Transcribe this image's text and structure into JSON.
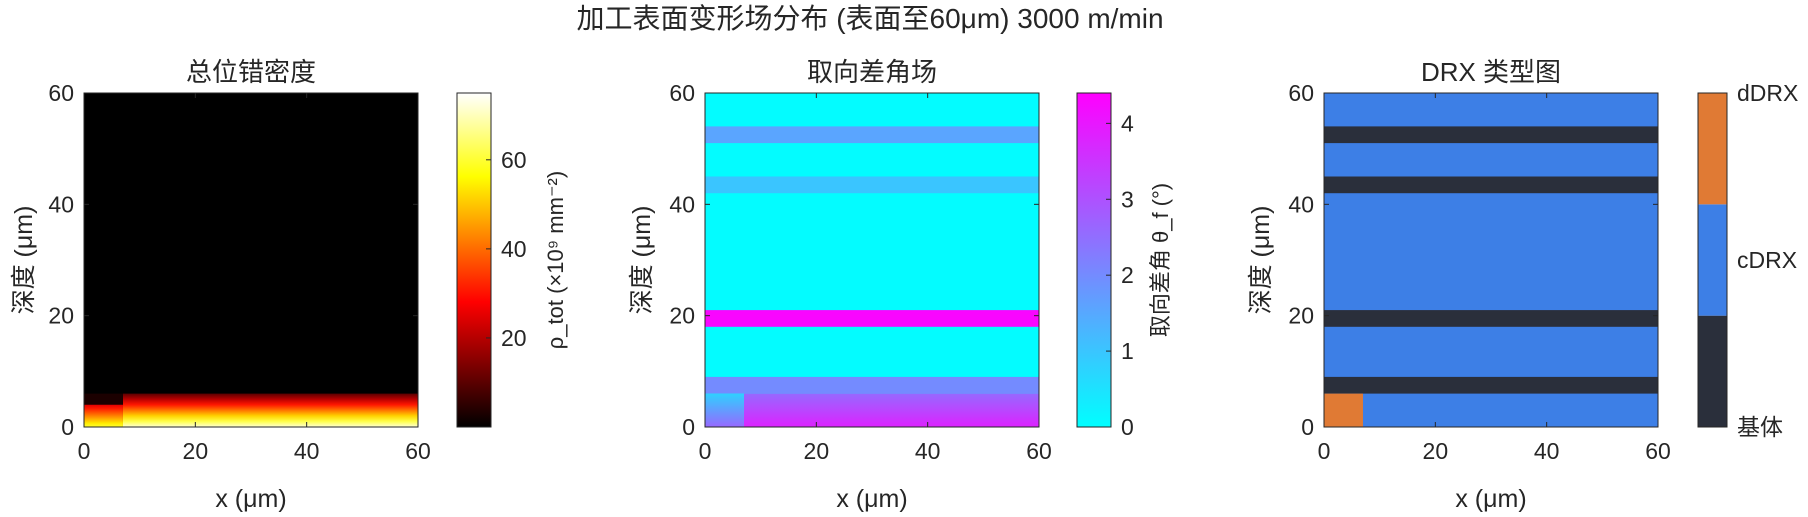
{
  "figure": {
    "title": "加工表面变形场分布 (表面至60μm)   3000 m/min"
  },
  "colors": {
    "axis": "#262626",
    "cyan": "#00ffff",
    "magenta": "#ff00ff",
    "drx_base": "#2a2f3b",
    "drx_c": "#3d7fe6",
    "drx_d": "#e07a34"
  },
  "chart_data": [
    {
      "type": "heatmap",
      "title": "总位错密度",
      "xlabel": "x (μm)",
      "ylabel": "深度 (μm)",
      "xlim": [
        0,
        60
      ],
      "ylim": [
        0,
        60
      ],
      "xticks": [
        0,
        20,
        40,
        60
      ],
      "yticks": [
        0,
        20,
        40,
        60
      ],
      "colormap": "hot",
      "colorbar": {
        "label": "ρ_tot (×10⁹ mm⁻²)",
        "range": [
          0,
          75
        ],
        "ticks": [
          20,
          40,
          60
        ]
      },
      "regions": [
        {
          "x": [
            0,
            60
          ],
          "y": [
            6,
            60
          ],
          "value": 0
        },
        {
          "x": [
            7,
            60
          ],
          "y": [
            0,
            6
          ],
          "value_top": 10,
          "value_bottom": 72
        },
        {
          "x": [
            0,
            7
          ],
          "y": [
            4,
            6
          ],
          "value": 3
        },
        {
          "x": [
            0,
            7
          ],
          "y": [
            0,
            4
          ],
          "value_top": 25,
          "value_bottom": 60
        }
      ]
    },
    {
      "type": "heatmap",
      "title": "取向差角场",
      "xlabel": "x (μm)",
      "ylabel": "深度 (μm)",
      "xlim": [
        0,
        60
      ],
      "ylim": [
        0,
        60
      ],
      "xticks": [
        0,
        20,
        40,
        60
      ],
      "yticks": [
        0,
        20,
        40,
        60
      ],
      "colormap": "cool",
      "colorbar": {
        "label": "取向差角 θ_f (°)",
        "range": [
          0,
          4.4
        ],
        "ticks": [
          0,
          1,
          2,
          3,
          4
        ]
      },
      "bands": [
        {
          "y": [
            51,
            54
          ],
          "value": 1.55
        },
        {
          "y": [
            42,
            45
          ],
          "value": 1.0
        },
        {
          "y": [
            18,
            21
          ],
          "value": 4.3
        },
        {
          "y": [
            6,
            9
          ],
          "value": 2.0
        }
      ],
      "background_value": 0.05,
      "regions": [
        {
          "x": [
            7,
            60
          ],
          "y": [
            0,
            6
          ],
          "value_top": 2.6,
          "value_bottom": 3.8
        },
        {
          "x": [
            0,
            7
          ],
          "y": [
            0,
            6
          ],
          "value_top": 0.8,
          "value_bottom": 2.6
        }
      ]
    },
    {
      "type": "heatmap",
      "title": "DRX 类型图",
      "xlabel": "x (μm)",
      "ylabel": "深度 (μm)",
      "xlim": [
        0,
        60
      ],
      "ylim": [
        0,
        60
      ],
      "xticks": [
        0,
        20,
        40,
        60
      ],
      "yticks": [
        0,
        20,
        40,
        60
      ],
      "colorbar": {
        "categories": [
          "基体",
          "cDRX",
          "dDRX"
        ]
      },
      "background_category": "cDRX",
      "bands": [
        {
          "y": [
            51,
            54
          ],
          "category": "基体"
        },
        {
          "y": [
            42,
            45
          ],
          "category": "基体"
        },
        {
          "y": [
            18,
            21
          ],
          "category": "基体"
        },
        {
          "y": [
            6,
            9
          ],
          "category": "基体"
        }
      ],
      "regions": [
        {
          "x": [
            0,
            7
          ],
          "y": [
            0,
            6
          ],
          "category": "dDRX"
        }
      ]
    }
  ]
}
